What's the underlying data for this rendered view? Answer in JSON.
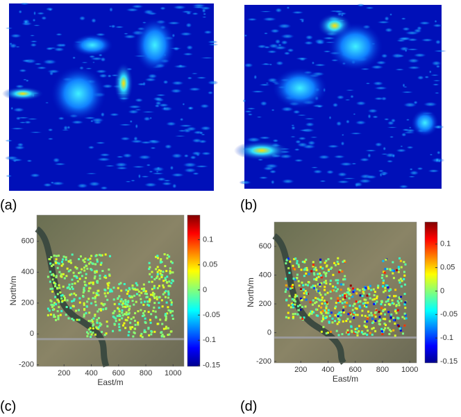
{
  "figures": [
    {
      "label": "(a)"
    },
    {
      "label": "(b)"
    },
    {
      "label": "(c)",
      "x_label": "East/m",
      "y_label": "North/m",
      "xlim": [
        0,
        1080
      ],
      "ylim": [
        -210,
        770
      ],
      "xticks": [
        200,
        400,
        600,
        800,
        1000
      ],
      "yticks": [
        -200,
        0,
        200,
        400,
        600
      ],
      "colorbar_lim": [
        -0.152,
        0.149
      ],
      "colorbar_ticks": [
        0.1,
        0.05,
        0,
        -0.05,
        -0.1,
        -0.15
      ]
    },
    {
      "label": "(d)",
      "x_label": "East/m",
      "y_label": "North/m",
      "xlim": [
        5,
        1050
      ],
      "ylim": [
        -210,
        769
      ],
      "xticks": [
        200,
        400,
        600,
        800,
        1000
      ],
      "yticks": [
        -200,
        0,
        200,
        400,
        600
      ],
      "colorbar_lim": [
        -0.153,
        0.147
      ],
      "colorbar_ticks": [
        0.1,
        0.05,
        0,
        -0.05,
        -0.1,
        -0.15
      ]
    }
  ]
}
